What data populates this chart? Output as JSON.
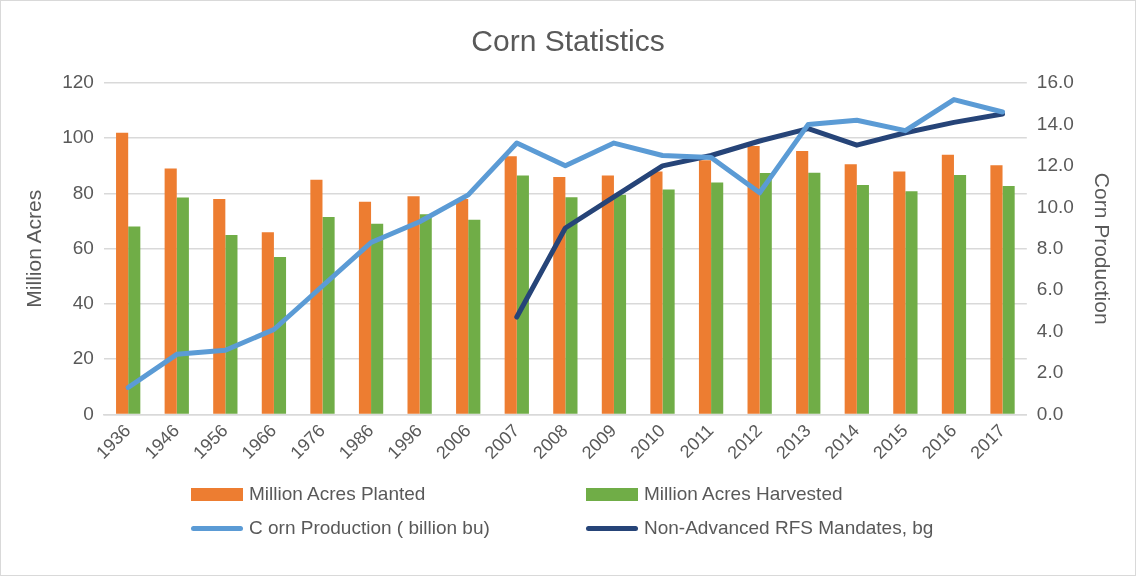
{
  "chart_data": {
    "type": "bar",
    "title": "Corn Statistics",
    "ylabel": "Million Acres",
    "y2label": "Corn Production",
    "categories": [
      "1936",
      "1946",
      "1956",
      "1966",
      "1976",
      "1986",
      "1996",
      "2006",
      "2007",
      "2008",
      "2009",
      "2010",
      "2011",
      "2012",
      "2013",
      "2014",
      "2015",
      "2016",
      "2017"
    ],
    "series": [
      {
        "name": "Million Acres Planted",
        "color": "#ed7d31",
        "values": [
          102,
          89,
          78,
          66,
          85,
          77,
          79,
          78,
          93.5,
          86,
          86.5,
          88,
          92,
          97.2,
          95.4,
          90.6,
          88,
          94,
          90.2
        ]
      },
      {
        "name": "Million Acres Harvested",
        "color": "#70ad47",
        "values": [
          68,
          78.5,
          65,
          57,
          71.5,
          69,
          72.5,
          70.5,
          86.5,
          78.6,
          79.5,
          81.4,
          84,
          87.4,
          87.5,
          83.1,
          80.8,
          86.7,
          82.7
        ]
      },
      {
        "name": "C orn Production ( billion bu)",
        "type": "line",
        "axis": "y2",
        "color": "#5b9bd5",
        "values": [
          1.3,
          2.9,
          3.1,
          4.1,
          6.2,
          8.3,
          9.3,
          10.6,
          13.1,
          12.0,
          13.1,
          12.5,
          12.4,
          10.7,
          14.0,
          14.2,
          13.7,
          15.2,
          14.6
        ]
      },
      {
        "name": "Non-Advanced RFS Mandates, bg",
        "type": "line",
        "axis": "y2",
        "color": "#264478",
        "values": [
          null,
          null,
          null,
          null,
          null,
          null,
          null,
          null,
          4.7,
          9.0,
          10.5,
          12.0,
          12.5,
          13.2,
          13.8,
          13.0,
          13.6,
          14.1,
          14.5
        ]
      }
    ],
    "ylim": [
      0,
      120
    ],
    "yticks": [
      0,
      20,
      40,
      60,
      80,
      100,
      120
    ],
    "y2lim": [
      0,
      16
    ],
    "y2ticks": [
      {
        "value": 0,
        "label": "0.0"
      },
      {
        "value": 2,
        "label": "2.0"
      },
      {
        "value": 4,
        "label": "4.0"
      },
      {
        "value": 6,
        "label": "6.0"
      },
      {
        "value": 8,
        "label": "8.0"
      },
      {
        "value": 10,
        "label": "10.0"
      },
      {
        "value": 12,
        "label": "12.0"
      },
      {
        "value": 14,
        "label": "14.0"
      },
      {
        "value": 16,
        "label": "16.0"
      }
    ],
    "grid": "y",
    "legend": "bottom",
    "marker": "none",
    "line_style": "solid"
  }
}
